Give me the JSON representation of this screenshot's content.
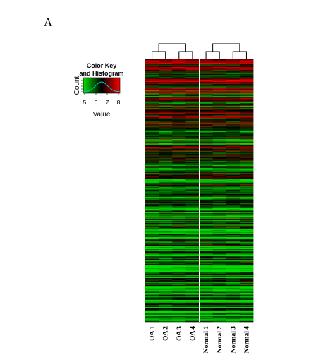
{
  "figure": {
    "panel_label": "A"
  },
  "chart_data": {
    "type": "heatmap",
    "columns": [
      "OA 1",
      "OA 2",
      "OA 3",
      "OA 4",
      "Normal 1",
      "Normal 2",
      "Normal 3",
      "Normal 4"
    ],
    "column_groups": [
      {
        "name": "OA",
        "columns": [
          "OA 1",
          "OA 2",
          "OA 3",
          "OA 4"
        ]
      },
      {
        "name": "Normal",
        "columns": [
          "Normal 1",
          "Normal 2",
          "Normal 3",
          "Normal 4"
        ]
      }
    ],
    "dendrogram": "columns",
    "value_range": [
      5,
      8
    ],
    "color_scale": {
      "low": "#00e000",
      "mid": "#000000",
      "high": "#ff0000"
    },
    "row_count": 300,
    "color_key": {
      "title_line1": "Color Key",
      "title_line2": "and Histogram",
      "xlabel": "Value",
      "ylabel": "Count",
      "ticks": [
        "5",
        "6",
        "7",
        "8"
      ]
    }
  }
}
